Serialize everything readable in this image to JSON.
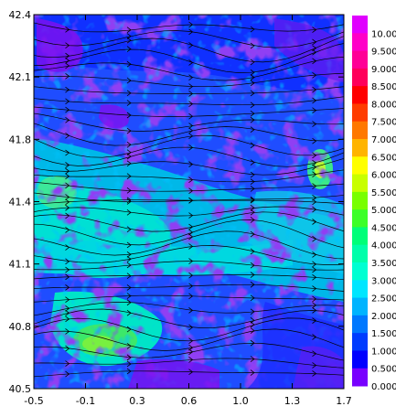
{
  "chart_data": {
    "type": "heatmap",
    "title": "",
    "xlabel": "",
    "ylabel": "",
    "xlim": [
      -0.5,
      1.7
    ],
    "ylim": [
      40.5,
      42.4
    ],
    "x_ticks": [
      "-0.5",
      "-0.1",
      "0.3",
      "0.6",
      "1.0",
      "1.3",
      "1.7"
    ],
    "y_ticks": [
      "40.5",
      "40.8",
      "41.1",
      "41.4",
      "41.8",
      "42.1",
      "42.4"
    ],
    "overlay": "streamlines with arrowheads, flow predominantly west to east",
    "colorbar": {
      "labels": [
        "10.00",
        "9.500",
        "9.000",
        "8.500",
        "8.000",
        "7.500",
        "7.000",
        "6.500",
        "6.000",
        "5.500",
        "5.000",
        "4.500",
        "4.000",
        "3.500",
        "3.000",
        "2.500",
        "2.000",
        "1.500",
        "1.000",
        "0.500",
        "0.000"
      ],
      "colors": [
        "#e000ff",
        "#ff00c8",
        "#ff0096",
        "#ff005a",
        "#ff0000",
        "#ff3c00",
        "#ff7800",
        "#ffb400",
        "#ffff00",
        "#c8ff00",
        "#78ff00",
        "#3cff28",
        "#00ff78",
        "#00ffaa",
        "#00ffd2",
        "#00e6ff",
        "#00b4ff",
        "#0078ff",
        "#003cff",
        "#0000ff",
        "#7800ff"
      ]
    },
    "field_description": [
      {
        "region": "west-central band",
        "level": 3.0
      },
      {
        "region": "southwest corner",
        "level": 4.5
      },
      {
        "region": "east edge near 41.6N",
        "level": 5.5
      },
      {
        "region": "northern mountains",
        "level": 0.5
      }
    ]
  }
}
